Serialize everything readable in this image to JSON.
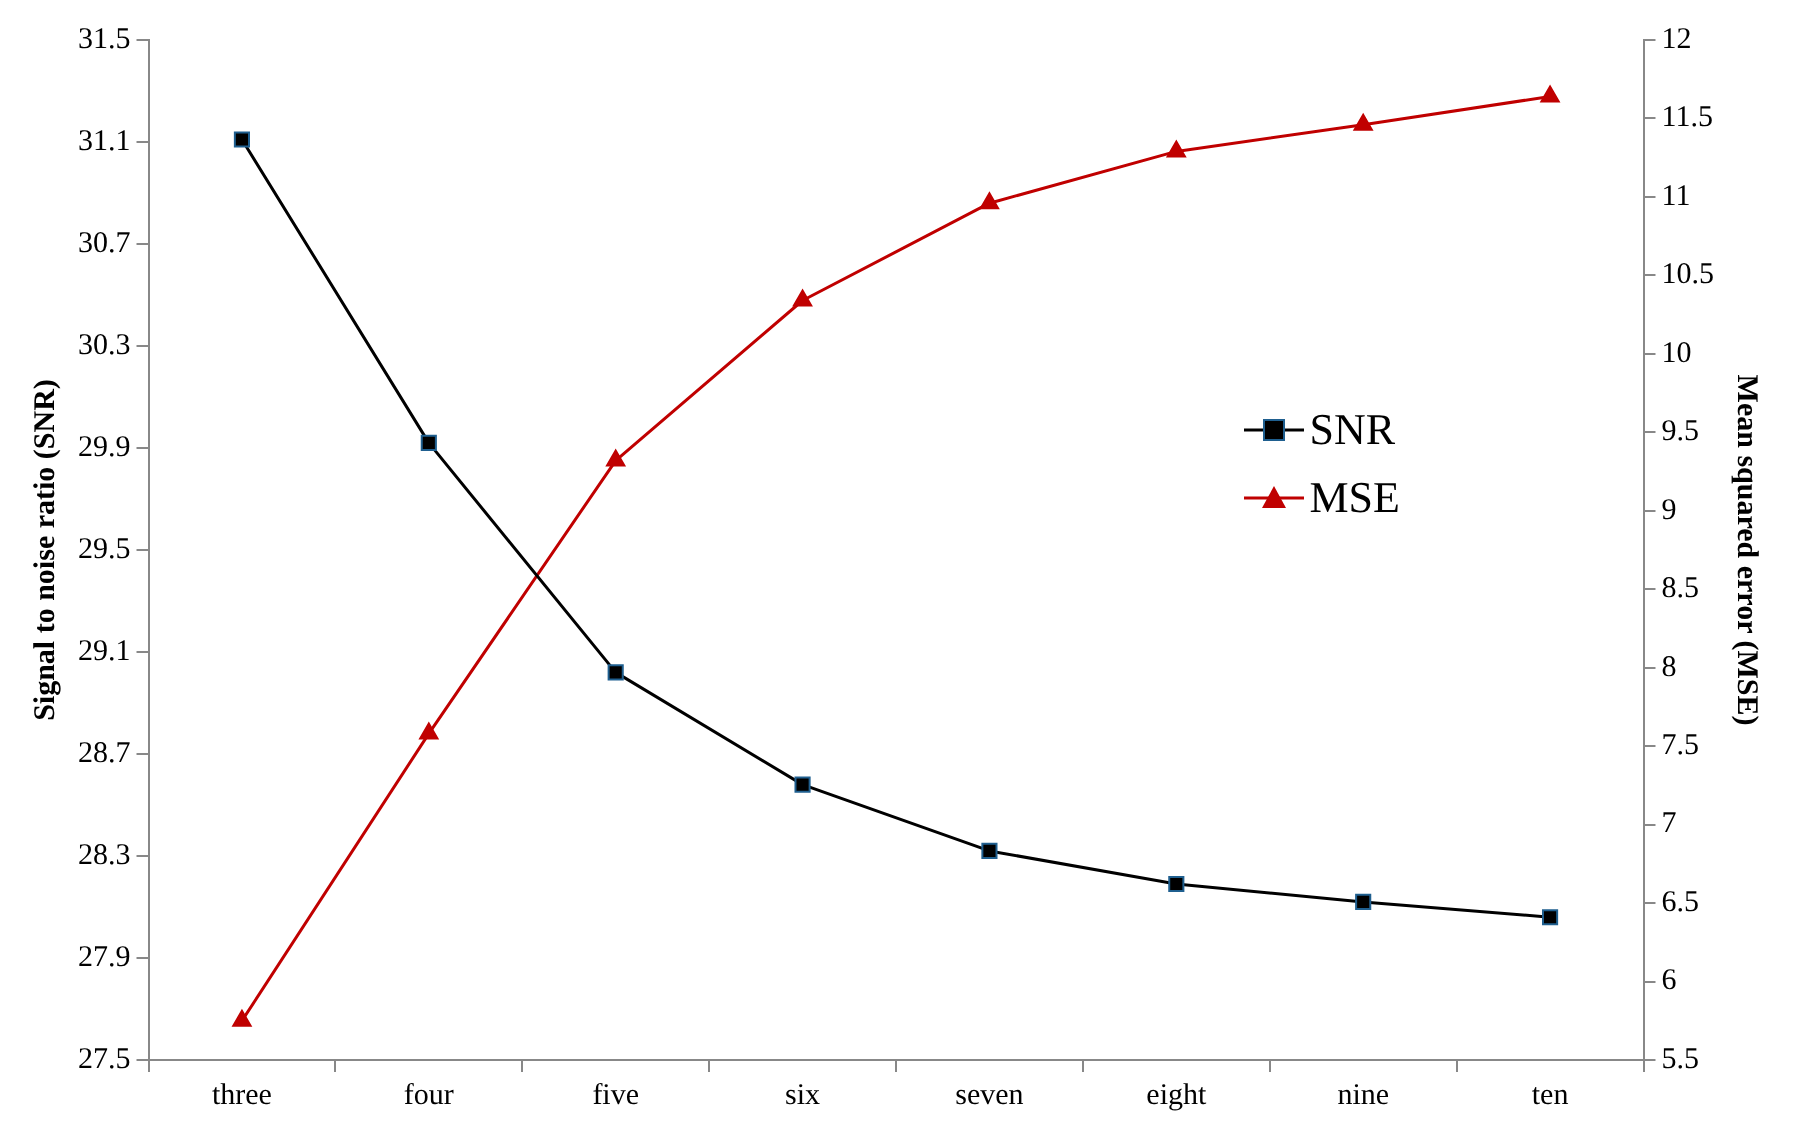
{
  "chart_data": {
    "type": "line",
    "ylabel": "Signal to noise ratio (SNR)",
    "y2label": "Mean squared error (MSE)",
    "categories": [
      "three",
      "four",
      "five",
      "six",
      "seven",
      "eight",
      "nine",
      "ten"
    ],
    "series": [
      {
        "name": "SNR",
        "color": "#000000",
        "marker": "square",
        "values": [
          31.11,
          29.92,
          29.02,
          28.58,
          28.32,
          28.19,
          28.12,
          28.06
        ]
      },
      {
        "name": "MSE",
        "color": "#c00000",
        "marker": "triangle",
        "axis": "y2",
        "values": [
          5.75,
          7.58,
          9.32,
          10.34,
          10.96,
          11.29,
          11.46,
          11.64
        ]
      }
    ],
    "ylim": [
      27.5,
      31.5
    ],
    "yticks": [
      {
        "value": 27.5,
        "label": "27.5"
      },
      {
        "value": 27.9,
        "label": "27.9"
      },
      {
        "value": 28.3,
        "label": "28.3"
      },
      {
        "value": 28.7,
        "label": "28.7"
      },
      {
        "value": 29.1,
        "label": "29.1"
      },
      {
        "value": 29.5,
        "label": "29.5"
      },
      {
        "value": 29.9,
        "label": "29.9"
      },
      {
        "value": 30.3,
        "label": "30.3"
      },
      {
        "value": 30.7,
        "label": "30.7"
      },
      {
        "value": 31.1,
        "label": "31.1"
      },
      {
        "value": 31.5,
        "label": "31.5"
      }
    ],
    "y2lim": [
      5.5,
      12
    ],
    "y2ticks": [
      5.5,
      6,
      6.5,
      7,
      7.5,
      8,
      8.5,
      9,
      9.5,
      10,
      10.5,
      11,
      11.5,
      12
    ],
    "grid": false,
    "legend": "right",
    "line_style": "solid"
  }
}
